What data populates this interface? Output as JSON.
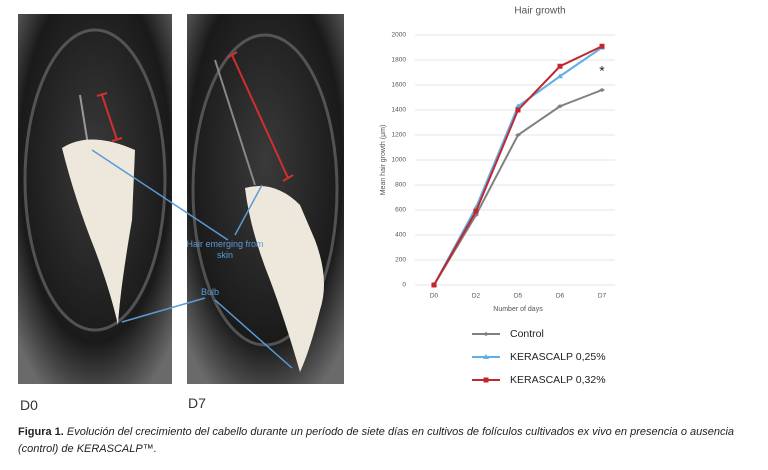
{
  "photos": {
    "labels": [
      "D0",
      "D7"
    ],
    "annotations": [
      "Hair emerging from skin",
      "Bulb"
    ]
  },
  "chart_data": {
    "type": "line",
    "title": "Hair growth",
    "x_label": "Number of days",
    "y_label": "Mean hair growth (µm)",
    "categories": [
      "D0",
      "D2",
      "D5",
      "D6",
      "D7"
    ],
    "series": [
      {
        "name": "Control",
        "color": "#808080",
        "values": [
          0,
          560,
          1200,
          1430,
          1560
        ]
      },
      {
        "name": "KERASCALP 0,25%",
        "color": "#5fb0e6",
        "values": [
          0,
          620,
          1430,
          1670,
          1900
        ]
      },
      {
        "name": "KERASCALP 0,32%",
        "color": "#c0282e",
        "values": [
          0,
          590,
          1400,
          1750,
          1910
        ]
      }
    ],
    "ylim": [
      0,
      2000
    ],
    "yticks": [
      0,
      200,
      400,
      600,
      800,
      1000,
      1200,
      1400,
      1600,
      1800,
      2000
    ],
    "grid": true,
    "annotation": "*"
  },
  "caption": {
    "label": "Figura 1.",
    "text": "Evolución del crecimiento del cabello durante un período de siete días en cultivos de folículos cultivados ex vivo en presencia o ausencia (control) de KERASCALP™."
  }
}
